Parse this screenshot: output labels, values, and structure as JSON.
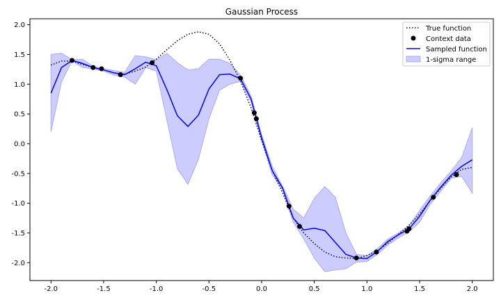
{
  "chart_data": {
    "type": "line",
    "title": "Gaussian Process",
    "xlabel": "",
    "ylabel": "",
    "xlim": [
      -2.2,
      2.2
    ],
    "ylim": [
      -2.3,
      2.1
    ],
    "x_ticks": [
      "-2.0",
      "-1.5",
      "-1.0",
      "-0.5",
      "0.0",
      "0.5",
      "1.0",
      "1.5",
      "2.0"
    ],
    "y_ticks": [
      "2.0",
      "1.5",
      "1.0",
      "0.5",
      "0.0",
      "-0.5",
      "-1.0",
      "-1.5",
      "-2.0"
    ],
    "x_tick_values": [
      -2.0,
      -1.5,
      -1.0,
      -0.5,
      0.0,
      0.5,
      1.0,
      1.5,
      2.0
    ],
    "y_tick_values": [
      2.0,
      1.5,
      1.0,
      0.5,
      0.0,
      -0.5,
      -1.0,
      -1.5,
      -2.0
    ],
    "grid": false,
    "legend_position": "top-right",
    "legend": {
      "true_function": "True function",
      "context_data": "Context data",
      "sampled_function": "Sampled function",
      "sigma_range": "1-sigma range"
    },
    "colors": {
      "true_function": "#000000",
      "context_data": "#000000",
      "sampled_function": "#0000ff",
      "sigma_fill": "#ccccff",
      "sigma_edge": "#aaaaff"
    },
    "true_function": {
      "x": [
        -2.0,
        -1.9,
        -1.8,
        -1.7,
        -1.6,
        -1.5,
        -1.4,
        -1.3,
        -1.2,
        -1.1,
        -1.0,
        -0.9,
        -0.8,
        -0.7,
        -0.6,
        -0.5,
        -0.4,
        -0.3,
        -0.2,
        -0.1,
        0.0,
        0.1,
        0.2,
        0.3,
        0.4,
        0.5,
        0.6,
        0.7,
        0.8,
        0.9,
        1.0,
        1.1,
        1.2,
        1.3,
        1.4,
        1.5,
        1.6,
        1.7,
        1.8,
        1.9,
        2.0
      ],
      "y": [
        1.32,
        1.39,
        1.39,
        1.33,
        1.28,
        1.24,
        1.19,
        1.17,
        1.22,
        1.29,
        1.42,
        1.58,
        1.73,
        1.84,
        1.88,
        1.84,
        1.68,
        1.4,
        1.05,
        0.6,
        0.05,
        -0.45,
        -0.83,
        -1.25,
        -1.5,
        -1.68,
        -1.82,
        -1.9,
        -1.92,
        -1.93,
        -1.88,
        -1.8,
        -1.67,
        -1.52,
        -1.37,
        -1.18,
        -0.96,
        -0.75,
        -0.56,
        -0.43,
        -0.4
      ]
    },
    "context_data": {
      "x": [
        -1.8,
        -1.6,
        -1.52,
        -1.34,
        -1.04,
        -0.2,
        -0.07,
        -0.05,
        0.26,
        0.36,
        0.9,
        1.09,
        1.38,
        1.4,
        1.63,
        1.85
      ],
      "y": [
        1.4,
        1.28,
        1.26,
        1.16,
        1.36,
        1.1,
        0.52,
        0.42,
        -1.05,
        -1.39,
        -1.92,
        -1.82,
        -1.47,
        -1.43,
        -0.9,
        -0.52
      ]
    },
    "sampled_function": {
      "x": [
        -2.0,
        -1.9,
        -1.8,
        -1.7,
        -1.6,
        -1.5,
        -1.4,
        -1.3,
        -1.2,
        -1.1,
        -1.0,
        -0.9,
        -0.8,
        -0.7,
        -0.6,
        -0.5,
        -0.4,
        -0.3,
        -0.2,
        -0.1,
        0.0,
        0.1,
        0.2,
        0.3,
        0.4,
        0.5,
        0.6,
        0.7,
        0.8,
        0.9,
        1.0,
        1.1,
        1.2,
        1.3,
        1.4,
        1.5,
        1.6,
        1.7,
        1.8,
        1.9,
        2.0
      ],
      "y": [
        0.85,
        1.28,
        1.4,
        1.35,
        1.28,
        1.24,
        1.19,
        1.16,
        1.26,
        1.37,
        1.31,
        0.91,
        0.47,
        0.29,
        0.48,
        0.92,
        1.16,
        1.17,
        1.09,
        0.75,
        0.1,
        -0.45,
        -0.75,
        -1.25,
        -1.45,
        -1.42,
        -1.46,
        -1.66,
        -1.86,
        -1.92,
        -1.93,
        -1.81,
        -1.64,
        -1.53,
        -1.43,
        -1.22,
        -0.95,
        -0.73,
        -0.53,
        -0.38,
        -0.27
      ]
    },
    "sigma_upper": {
      "x": [
        -2.0,
        -1.9,
        -1.8,
        -1.7,
        -1.6,
        -1.5,
        -1.4,
        -1.3,
        -1.2,
        -1.1,
        -1.0,
        -0.9,
        -0.8,
        -0.7,
        -0.6,
        -0.5,
        -0.4,
        -0.3,
        -0.2,
        -0.1,
        0.0,
        0.1,
        0.2,
        0.3,
        0.4,
        0.5,
        0.6,
        0.7,
        0.8,
        0.9,
        1.0,
        1.1,
        1.2,
        1.3,
        1.4,
        1.5,
        1.6,
        1.7,
        1.8,
        1.9,
        2.0
      ],
      "y": [
        1.5,
        1.52,
        1.41,
        1.42,
        1.3,
        1.26,
        1.23,
        1.2,
        1.48,
        1.46,
        1.41,
        1.52,
        1.36,
        1.24,
        1.26,
        1.42,
        1.42,
        1.35,
        1.15,
        0.8,
        0.15,
        -0.38,
        -0.72,
        -1.1,
        -1.25,
        -0.92,
        -0.72,
        -0.9,
        -1.5,
        -1.86,
        -1.88,
        -1.76,
        -1.6,
        -1.5,
        -1.38,
        -1.12,
        -0.88,
        -0.66,
        -0.46,
        -0.23,
        0.27
      ]
    },
    "sigma_lower": {
      "x": [
        -2.0,
        -1.9,
        -1.8,
        -1.7,
        -1.6,
        -1.5,
        -1.4,
        -1.3,
        -1.2,
        -1.1,
        -1.0,
        -0.9,
        -0.8,
        -0.7,
        -0.6,
        -0.5,
        -0.4,
        -0.3,
        -0.2,
        -0.1,
        0.0,
        0.1,
        0.2,
        0.3,
        0.4,
        0.5,
        0.6,
        0.7,
        0.8,
        0.9,
        1.0,
        1.1,
        1.2,
        1.3,
        1.4,
        1.5,
        1.6,
        1.7,
        1.8,
        1.9,
        2.0
      ],
      "y": [
        0.2,
        1.04,
        1.39,
        1.28,
        1.26,
        1.22,
        1.15,
        1.12,
        1.0,
        1.28,
        1.22,
        0.4,
        -0.42,
        -0.68,
        -0.26,
        0.42,
        0.9,
        1.0,
        1.05,
        0.7,
        0.05,
        -0.52,
        -0.78,
        -1.32,
        -1.6,
        -1.92,
        -2.15,
        -2.12,
        -2.1,
        -1.99,
        -1.98,
        -1.86,
        -1.7,
        -1.58,
        -1.48,
        -1.32,
        -1.02,
        -0.8,
        -0.58,
        -0.55,
        -0.83
      ]
    }
  }
}
